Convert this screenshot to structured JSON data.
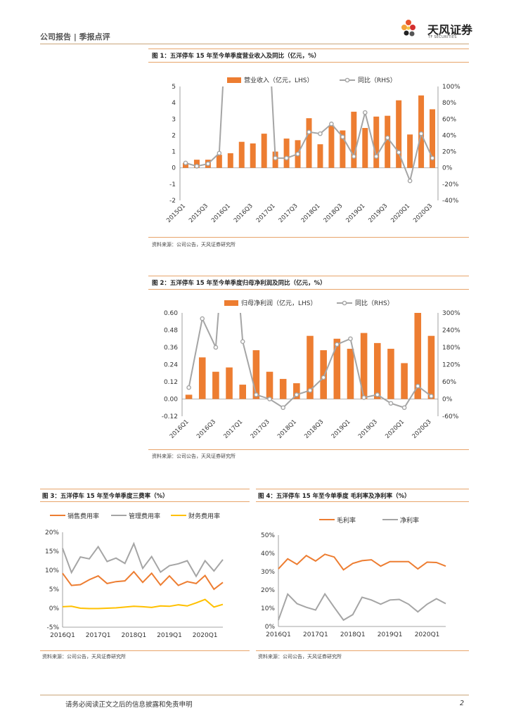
{
  "header": {
    "left_text": "公司报告 | 季报点评",
    "logo_cn": "天风证券",
    "logo_en": "TF SECURITIES"
  },
  "fig1": {
    "title": "图 1：五洋停车 15 年至今单季度营业收入及同比（亿元，%）",
    "source": "资料来源：公司公告，天风证券研究所",
    "chart_data": {
      "type": "bar",
      "categories": [
        "2015Q1",
        "2015Q2",
        "2015Q3",
        "2015Q4",
        "2016Q1",
        "2016Q2",
        "2016Q3",
        "2016Q4",
        "2017Q1",
        "2017Q2",
        "2017Q3",
        "2017Q4",
        "2018Q1",
        "2018Q2",
        "2018Q3",
        "2018Q4",
        "2019Q1",
        "2019Q2",
        "2019Q3",
        "2019Q4",
        "2020Q1",
        "2020Q2",
        "2020Q3"
      ],
      "tick_labels": [
        "2015Q1",
        "2015Q3",
        "2016Q1",
        "2016Q3",
        "2017Q1",
        "2017Q3",
        "2018Q1",
        "2018Q3",
        "2019Q1",
        "2019Q3",
        "2020Q1",
        "2020Q3"
      ],
      "series": [
        {
          "name": "营业收入（亿元，LHS）",
          "axis": "left",
          "kind": "bar",
          "color": "#ed7d31",
          "values": [
            0.3,
            0.5,
            0.5,
            0.8,
            0.9,
            1.6,
            1.5,
            2.1,
            1.0,
            1.8,
            1.7,
            3.05,
            1.45,
            2.6,
            2.3,
            3.45,
            2.45,
            3.15,
            3.2,
            4.15,
            2.05,
            4.45,
            3.6
          ]
        },
        {
          "name": "同比（RHS）",
          "axis": "right",
          "kind": "line",
          "color": "#a5a5a5",
          "values": [
            6,
            2,
            5,
            18,
            null,
            null,
            null,
            null,
            12,
            12,
            17,
            44,
            42,
            54,
            38,
            14,
            68,
            14,
            37,
            19,
            -16,
            42,
            12
          ]
        }
      ],
      "ylim_left": [
        -2,
        5
      ],
      "yticks_left": [
        -2,
        -1,
        0,
        1,
        2,
        3,
        4,
        5
      ],
      "ylim_right": [
        -40,
        100
      ],
      "yticks_right": [
        "-40%",
        "-20%",
        "0%",
        "20%",
        "40%",
        "60%",
        "80%",
        "100%"
      ]
    }
  },
  "fig2": {
    "title": "图 2：五洋停车 15 年至今单季度归母净利润及同比（亿元，%）",
    "source": "资料来源：公司公告，天风证券研究所",
    "chart_data": {
      "type": "bar",
      "categories": [
        "2016Q1",
        "2016Q2",
        "2016Q3",
        "2016Q4",
        "2017Q1",
        "2017Q2",
        "2017Q3",
        "2017Q4",
        "2018Q1",
        "2018Q2",
        "2018Q3",
        "2018Q4",
        "2019Q1",
        "2019Q2",
        "2019Q3",
        "2019Q4",
        "2020Q1",
        "2020Q2",
        "2020Q3"
      ],
      "tick_labels": [
        "2016Q1",
        "2016Q3",
        "2017Q1",
        "2017Q3",
        "2018Q1",
        "2018Q3",
        "2019Q1",
        "2019Q3",
        "2020Q1",
        "2020Q3"
      ],
      "series": [
        {
          "name": "归母净利润（亿元，LHS）",
          "axis": "left",
          "kind": "bar",
          "color": "#ed7d31",
          "values": [
            0.03,
            0.29,
            0.19,
            0.22,
            0.1,
            0.34,
            0.19,
            0.14,
            0.11,
            0.44,
            0.34,
            0.42,
            0.35,
            0.46,
            0.39,
            0.35,
            0.25,
            0.6,
            0.44
          ]
        },
        {
          "name": "同比（RHS）",
          "axis": "right",
          "kind": "line",
          "color": "#a5a5a5",
          "values": [
            40,
            280,
            180,
            null,
            200,
            15,
            0,
            -30,
            15,
            30,
            75,
            190,
            210,
            5,
            15,
            -15,
            -30,
            45,
            10
          ]
        }
      ],
      "ylim_left": [
        -0.12,
        0.6
      ],
      "yticks_left": [
        "-0.12",
        "0.00",
        "0.12",
        "0.24",
        "0.36",
        "0.48",
        "0.60"
      ],
      "ylim_right": [
        -60,
        300
      ],
      "yticks_right": [
        "-60%",
        "0%",
        "60%",
        "120%",
        "180%",
        "240%",
        "300%"
      ]
    }
  },
  "fig3": {
    "title": "图 3：五洋停车 15 年至今单季度三费率（%）",
    "source": "资料来源：公司公告，天风证券研究所",
    "chart_data": {
      "type": "line",
      "x": [
        "2016Q1",
        "2016Q2",
        "2016Q3",
        "2016Q4",
        "2017Q1",
        "2017Q2",
        "2017Q3",
        "2017Q4",
        "2018Q1",
        "2018Q2",
        "2018Q3",
        "2018Q4",
        "2019Q1",
        "2019Q2",
        "2019Q3",
        "2019Q4",
        "2020Q1",
        "2020Q2",
        "2020Q3"
      ],
      "tick_labels": [
        "2016Q1",
        "2017Q1",
        "2018Q1",
        "2019Q1",
        "2020Q1"
      ],
      "series": [
        {
          "name": "销售费用率",
          "color": "#ed7d31",
          "values": [
            9.2,
            6.0,
            6.2,
            7.5,
            8.5,
            6.5,
            7.0,
            7.2,
            9.6,
            6.8,
            9.2,
            6.1,
            8.5,
            6.0,
            7.0,
            6.5,
            8.6,
            5.0,
            6.8
          ]
        },
        {
          "name": "管理费用率",
          "color": "#a5a5a5",
          "values": [
            15.8,
            9.4,
            13.5,
            13.0,
            16.2,
            12.3,
            13.2,
            11.8,
            17.0,
            10.5,
            13.6,
            9.5,
            11.2,
            11.7,
            12.5,
            8.4,
            12.5,
            9.8,
            12.8
          ]
        },
        {
          "name": "财务费用率",
          "color": "#ffc000",
          "values": [
            0.4,
            0.5,
            0.0,
            -0.1,
            -0.1,
            0.0,
            0.1,
            0.3,
            0.5,
            0.4,
            0.2,
            0.6,
            0.5,
            0.9,
            0.6,
            1.4,
            2.3,
            0.3,
            1.0
          ]
        }
      ],
      "ylim": [
        -5,
        20
      ],
      "yticks": [
        "-5%",
        "0%",
        "5%",
        "10%",
        "15%",
        "20%"
      ]
    }
  },
  "fig4": {
    "title": "图 4：五洋停车 15 年至今单季度 毛利率及净利率（%）",
    "source": "资料来源：公司公告，天风证券研究所",
    "chart_data": {
      "type": "line",
      "x": [
        "2016Q1",
        "2016Q2",
        "2016Q3",
        "2016Q4",
        "2017Q1",
        "2017Q2",
        "2017Q3",
        "2017Q4",
        "2018Q1",
        "2018Q2",
        "2018Q3",
        "2018Q4",
        "2019Q1",
        "2019Q2",
        "2019Q3",
        "2019Q4",
        "2020Q1",
        "2020Q2",
        "2020Q3"
      ],
      "tick_labels": [
        "2016Q1",
        "2017Q1",
        "2018Q1",
        "2019Q1",
        "2020Q1"
      ],
      "series": [
        {
          "name": "毛利率",
          "color": "#ed7d31",
          "values": [
            31.5,
            37.0,
            34.0,
            38.8,
            35.8,
            39.5,
            38.0,
            31.0,
            34.5,
            36.0,
            36.5,
            33.0,
            35.5,
            35.5,
            35.5,
            31.5,
            35.2,
            35.0,
            33.0
          ]
        },
        {
          "name": "净利率",
          "color": "#a5a5a5",
          "values": [
            3.5,
            17.7,
            12.5,
            10.5,
            9.0,
            17.8,
            10.5,
            3.5,
            6.5,
            16.0,
            14.5,
            12.2,
            14.5,
            14.8,
            12.2,
            8.0,
            12.2,
            15.2,
            12.5
          ]
        }
      ],
      "ylim": [
        0,
        50
      ],
      "yticks": [
        "0%",
        "10%",
        "20%",
        "30%",
        "40%",
        "50%"
      ]
    }
  },
  "footer": {
    "disclaimer": "请务必阅读正文之后的信息披露和免责申明",
    "page": "2"
  }
}
